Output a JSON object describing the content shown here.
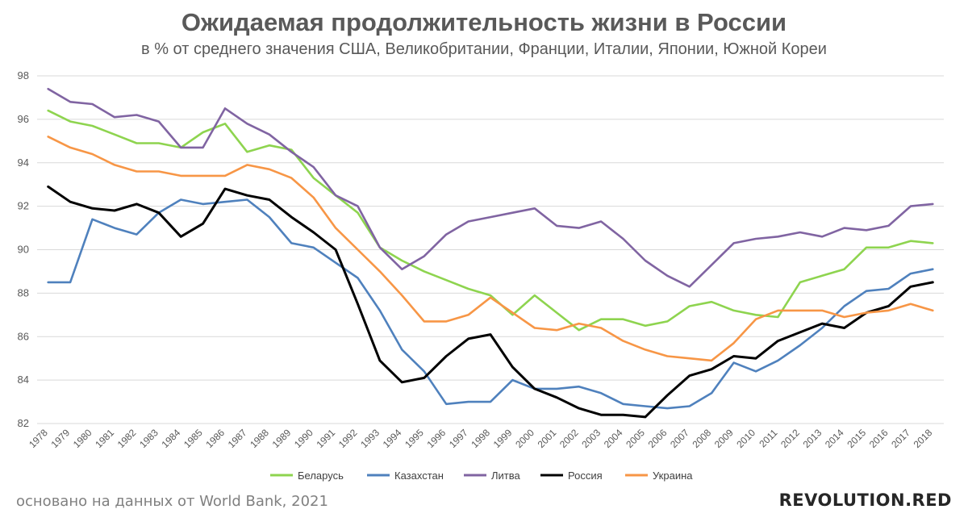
{
  "chart_data": {
    "type": "line",
    "title": "Ожидаемая продолжительность жизни в России",
    "subtitle": "в % от среднего значения США, Великобритании, Франции, Италии, Японии, Южной Кореи",
    "xlabel": "",
    "ylabel": "",
    "ylim": [
      82,
      98
    ],
    "yticks": [
      82,
      84,
      86,
      88,
      90,
      92,
      94,
      96,
      98
    ],
    "grid": true,
    "legend_position": "bottom",
    "x": [
      "1978",
      "1979",
      "1980",
      "1981",
      "1982",
      "1983",
      "1984",
      "1985",
      "1986",
      "1987",
      "1988",
      "1989",
      "1990",
      "1991",
      "1992",
      "1993",
      "1994",
      "1995",
      "1996",
      "1997",
      "1998",
      "1999",
      "2000",
      "2001",
      "2002",
      "2003",
      "2004",
      "2005",
      "2006",
      "2007",
      "2008",
      "2009",
      "2010",
      "2011",
      "2012",
      "2013",
      "2014",
      "2015",
      "2016",
      "2017",
      "2018"
    ],
    "series": [
      {
        "name": "Беларусь",
        "color": "#8ED44F",
        "values": [
          96.4,
          95.9,
          95.7,
          95.3,
          94.9,
          94.9,
          94.7,
          95.4,
          95.8,
          94.5,
          94.8,
          94.6,
          93.3,
          92.5,
          91.7,
          90.1,
          89.5,
          89.0,
          88.6,
          88.2,
          87.9,
          87.0,
          87.9,
          87.1,
          86.3,
          86.8,
          86.8,
          86.5,
          86.7,
          87.4,
          87.6,
          87.2,
          87.0,
          86.9,
          88.5,
          88.8,
          89.1,
          90.1,
          90.1,
          90.4,
          90.3
        ]
      },
      {
        "name": "Казахстан",
        "color": "#4F81BD",
        "values": [
          88.5,
          88.5,
          91.4,
          91.0,
          90.7,
          91.7,
          92.3,
          92.1,
          92.2,
          92.3,
          91.5,
          90.3,
          90.1,
          89.4,
          88.7,
          87.2,
          85.4,
          84.4,
          82.9,
          83.0,
          83.0,
          84.0,
          83.6,
          83.6,
          83.7,
          83.4,
          82.9,
          82.8,
          82.7,
          82.8,
          83.4,
          84.8,
          84.4,
          84.9,
          85.6,
          86.4,
          87.4,
          88.1,
          88.2,
          88.9,
          89.1
        ]
      },
      {
        "name": "Литва",
        "color": "#8064A2",
        "values": [
          97.4,
          96.8,
          96.7,
          96.1,
          96.2,
          95.9,
          94.7,
          94.7,
          96.5,
          95.8,
          95.3,
          94.5,
          93.8,
          92.5,
          92.0,
          90.1,
          89.1,
          89.7,
          90.7,
          91.3,
          91.5,
          91.7,
          91.9,
          91.1,
          91.0,
          91.3,
          90.5,
          89.5,
          88.8,
          88.3,
          89.3,
          90.3,
          90.5,
          90.6,
          90.8,
          90.6,
          91.0,
          90.9,
          91.1,
          92.0,
          92.1
        ]
      },
      {
        "name": "Россия",
        "color": "#000000",
        "values": [
          92.9,
          92.2,
          91.9,
          91.8,
          92.1,
          91.7,
          90.6,
          91.2,
          92.8,
          92.5,
          92.3,
          91.5,
          90.8,
          90.0,
          87.5,
          84.9,
          83.9,
          84.1,
          85.1,
          85.9,
          86.1,
          84.6,
          83.6,
          83.2,
          82.7,
          82.4,
          82.4,
          82.3,
          83.3,
          84.2,
          84.5,
          85.1,
          85.0,
          85.8,
          86.2,
          86.6,
          86.4,
          87.1,
          87.4,
          88.3,
          88.5
        ]
      },
      {
        "name": "Украина",
        "color": "#F79646",
        "values": [
          95.2,
          94.7,
          94.4,
          93.9,
          93.6,
          93.6,
          93.4,
          93.4,
          93.4,
          93.9,
          93.7,
          93.3,
          92.4,
          91.0,
          90.0,
          89.0,
          87.9,
          86.7,
          86.7,
          87.0,
          87.8,
          87.1,
          86.4,
          86.3,
          86.6,
          86.4,
          85.8,
          85.4,
          85.1,
          85.0,
          84.9,
          85.7,
          86.8,
          87.2,
          87.2,
          87.2,
          86.9,
          87.1,
          87.2,
          87.5,
          87.2
        ]
      }
    ]
  },
  "footer": {
    "source": "основано на данных от World Bank, 2021",
    "brand": "REVOLUTION.RED"
  }
}
